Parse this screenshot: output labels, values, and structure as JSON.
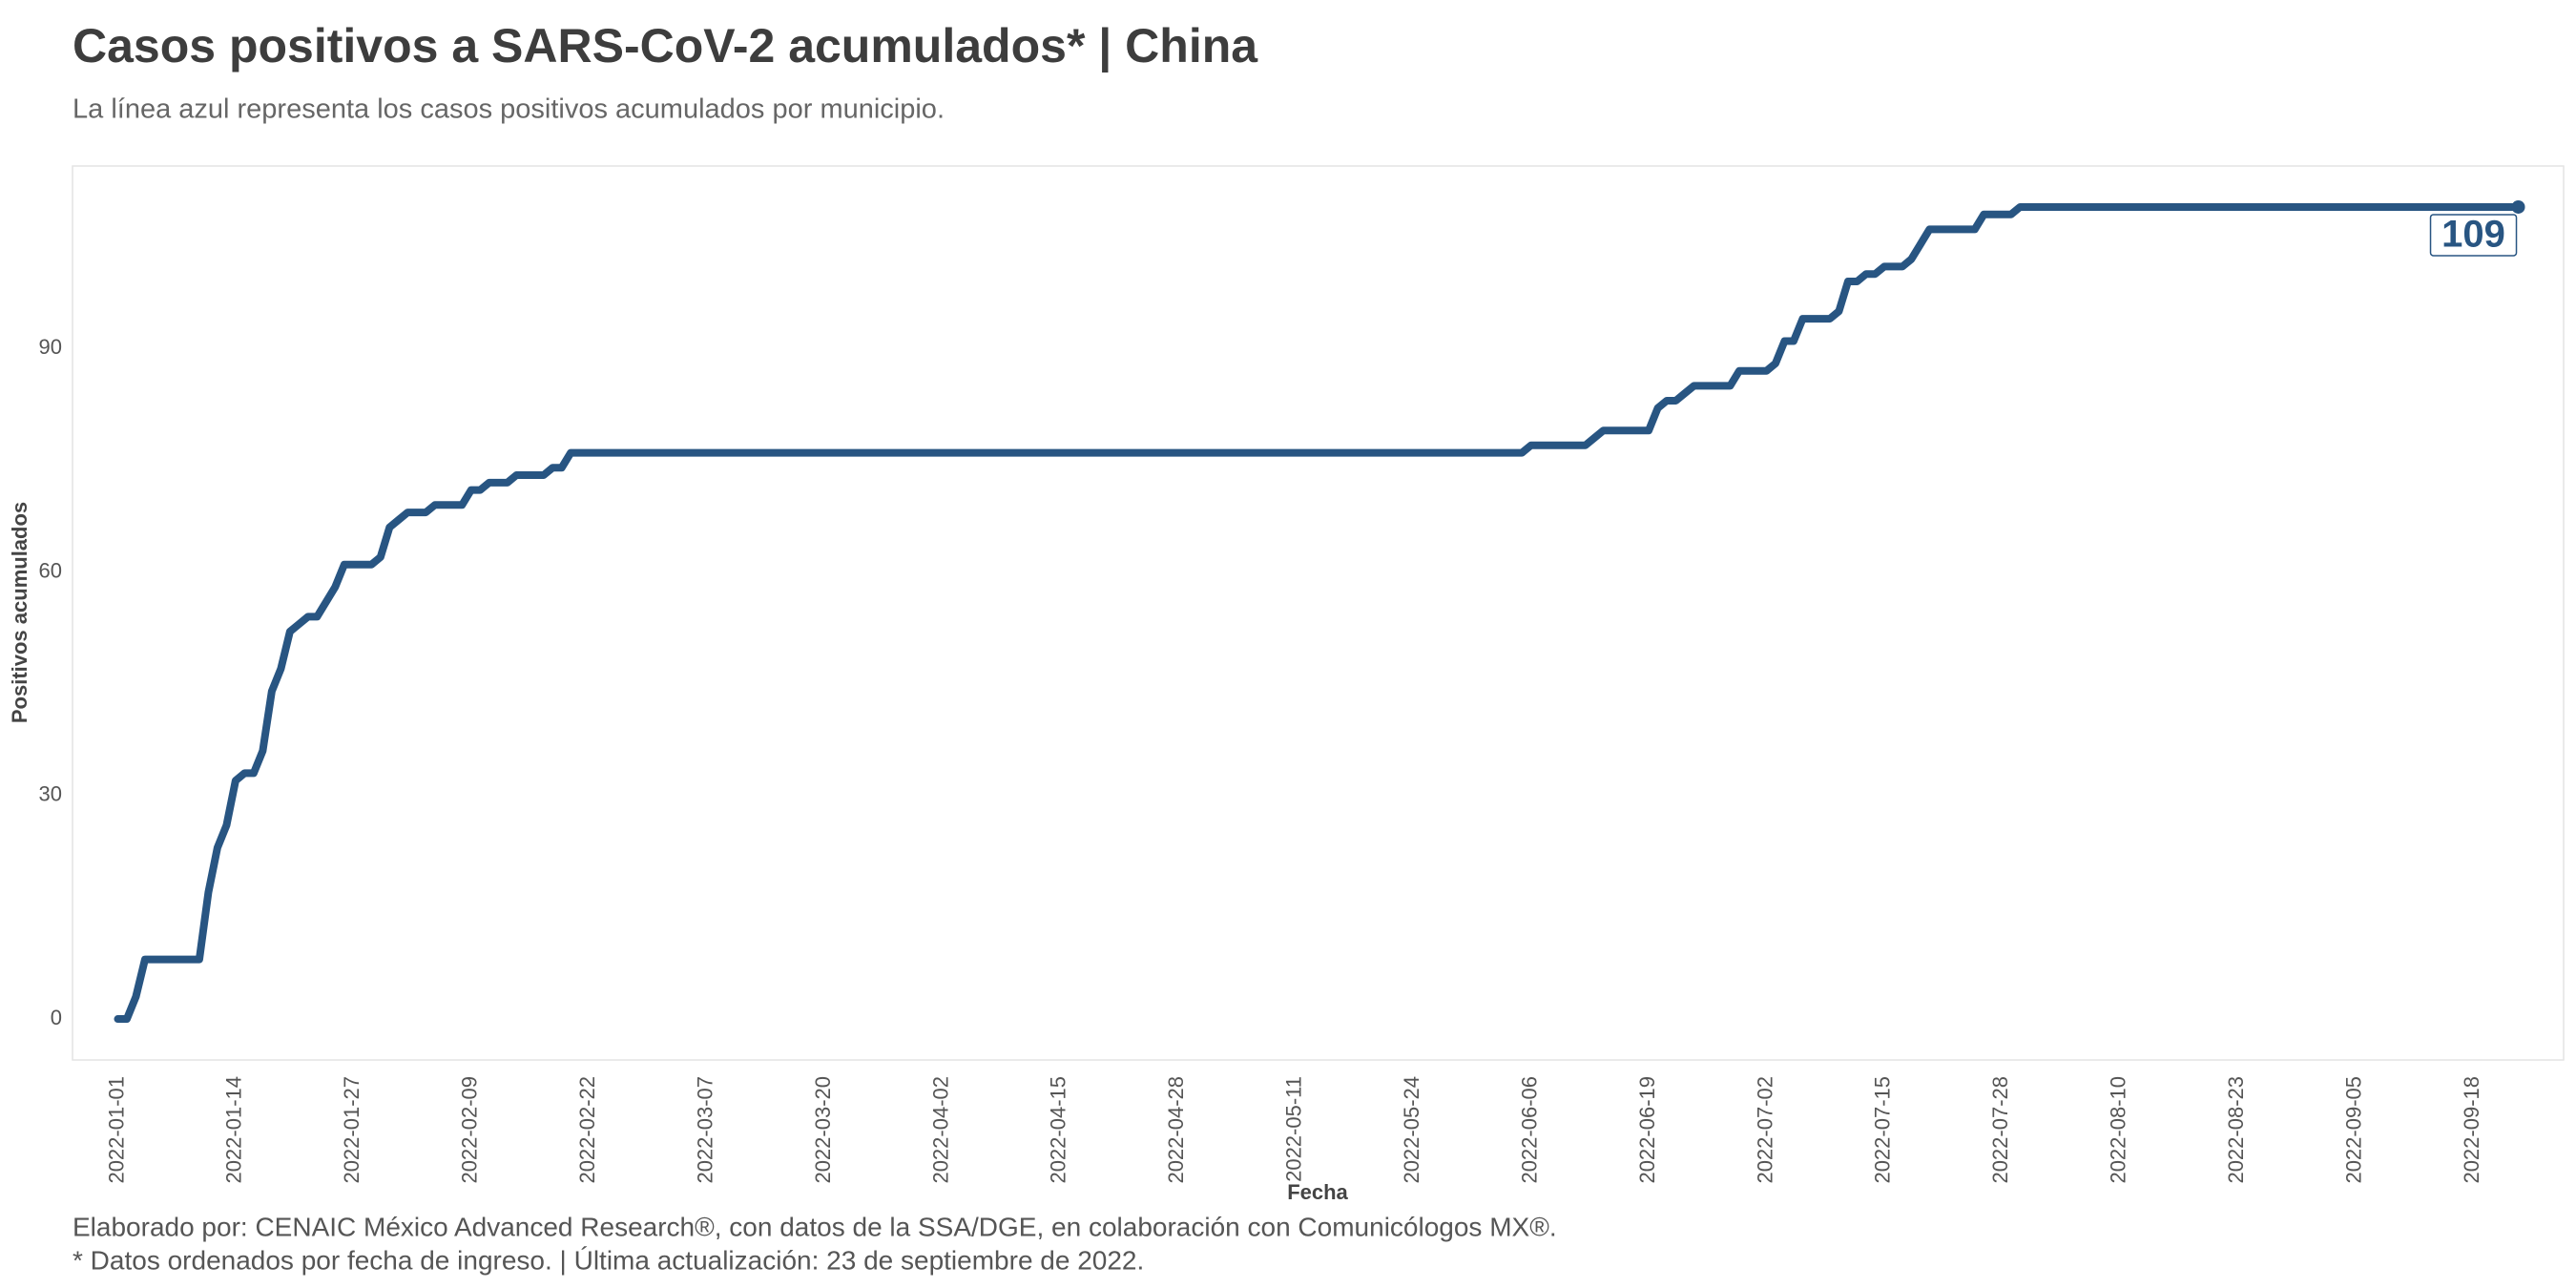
{
  "chart_data": {
    "type": "line",
    "title": "Casos positivos a SARS-CoV-2 acumulados* | China",
    "subtitle": "La línea azul representa los casos positivos acumulados por municipio.",
    "x_label": "Fecha",
    "y_label": "Positivos acumulados",
    "caption": [
      "Elaborado por: CENAIC México Advanced Research®, con datos de la SSA/DGE, en colaboración con Comunicólogos MX®.",
      "* Datos ordenados por fecha de ingreso. | Última actualización: 23 de septiembre de 2022."
    ],
    "series": [
      {
        "color": "#285582",
        "x": [
          "2022-01-01",
          "2022-01-02",
          "2022-01-03",
          "2022-01-04",
          "2022-01-09",
          "2022-01-10",
          "2022-01-11",
          "2022-01-12",
          "2022-01-13",
          "2022-01-14",
          "2022-01-15",
          "2022-01-16",
          "2022-01-17",
          "2022-01-18",
          "2022-01-19",
          "2022-01-20",
          "2022-01-21",
          "2022-01-22",
          "2022-01-23",
          "2022-01-24",
          "2022-01-25",
          "2022-01-26",
          "2022-01-29",
          "2022-01-30",
          "2022-01-31",
          "2022-02-01",
          "2022-02-02",
          "2022-02-04",
          "2022-02-05",
          "2022-02-08",
          "2022-02-09",
          "2022-02-10",
          "2022-02-11",
          "2022-02-13",
          "2022-02-14",
          "2022-02-17",
          "2022-02-18",
          "2022-02-19",
          "2022-02-20",
          "2022-06-05",
          "2022-06-06",
          "2022-06-12",
          "2022-06-13",
          "2022-06-14",
          "2022-06-19",
          "2022-06-20",
          "2022-06-21",
          "2022-06-22",
          "2022-06-23",
          "2022-06-24",
          "2022-06-28",
          "2022-06-29",
          "2022-07-02",
          "2022-07-03",
          "2022-07-04",
          "2022-07-05",
          "2022-07-06",
          "2022-07-09",
          "2022-07-10",
          "2022-07-11",
          "2022-07-12",
          "2022-07-13",
          "2022-07-14",
          "2022-07-15",
          "2022-07-17",
          "2022-07-18",
          "2022-07-19",
          "2022-07-20",
          "2022-07-25",
          "2022-07-26",
          "2022-07-29",
          "2022-07-30",
          "2022-09-23"
        ],
        "values": [
          0,
          0,
          3,
          8,
          8,
          8,
          17,
          23,
          26,
          32,
          33,
          33,
          36,
          44,
          47,
          52,
          53,
          54,
          54,
          56,
          58,
          61,
          61,
          62,
          66,
          67,
          68,
          68,
          69,
          69,
          71,
          71,
          72,
          72,
          73,
          73,
          74,
          74,
          76,
          76,
          77,
          77,
          78,
          79,
          79,
          82,
          83,
          83,
          84,
          85,
          85,
          87,
          87,
          88,
          91,
          91,
          94,
          94,
          95,
          99,
          99,
          100,
          100,
          101,
          101,
          102,
          104,
          106,
          106,
          108,
          108,
          109,
          109
        ]
      }
    ],
    "xlim": [
      "2021-12-27",
      "2022-09-28"
    ],
    "xticks": [
      "2022-01-01",
      "2022-01-14",
      "2022-01-27",
      "2022-02-09",
      "2022-02-22",
      "2022-03-07",
      "2022-03-20",
      "2022-04-02",
      "2022-04-15",
      "2022-04-28",
      "2022-05-11",
      "2022-05-24",
      "2022-06-06",
      "2022-06-19",
      "2022-07-02",
      "2022-07-15",
      "2022-07-28",
      "2022-08-10",
      "2022-08-23",
      "2022-09-05",
      "2022-09-18"
    ],
    "ylim": [
      -5.5,
      114.5
    ],
    "yticks": [
      0,
      30,
      60,
      90
    ],
    "grid": false
  }
}
